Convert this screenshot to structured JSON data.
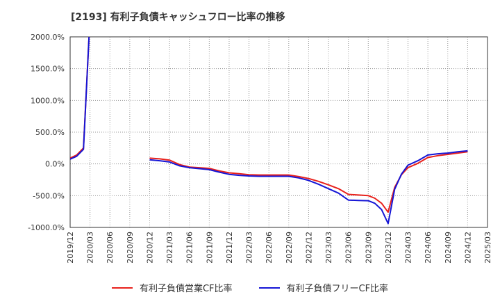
{
  "chart_data": {
    "type": "line",
    "title": "[2193]  有利子負債キャッシュフロー比率の推移",
    "xlabel": "",
    "ylabel": "",
    "ylim": [
      -1000,
      2000
    ],
    "xlim": [
      "2019/12",
      "2025/03"
    ],
    "grid": true,
    "legend_position": "bottom",
    "y_ticks": [
      2000,
      1500,
      1000,
      500,
      0,
      -500,
      -1000
    ],
    "y_tick_labels": [
      "2000.0%",
      "1500.0%",
      "1000.0%",
      "500.0%",
      "0.0%",
      "-500.0%",
      "-1000.0%"
    ],
    "x_tick_labels": [
      "2019/12",
      "2020/03",
      "2020/06",
      "2020/09",
      "2020/12",
      "2021/03",
      "2021/06",
      "2021/09",
      "2021/12",
      "2022/03",
      "2022/06",
      "2022/09",
      "2022/12",
      "2023/03",
      "2023/06",
      "2023/09",
      "2023/12",
      "2024/03",
      "2024/06",
      "2024/09",
      "2024/12",
      "2025/03"
    ],
    "series": [
      {
        "name": "有利子負債営業CF比率",
        "color": "#e8211c",
        "segments": [
          [
            [
              0,
              90
            ],
            [
              0.33,
              140
            ],
            [
              0.67,
              250
            ],
            [
              0.95,
              2000
            ]
          ],
          [
            [
              4,
              90
            ],
            [
              4.5,
              80
            ],
            [
              5,
              60
            ],
            [
              5.5,
              -10
            ],
            [
              6,
              -50
            ],
            [
              6.5,
              -60
            ],
            [
              7,
              -70
            ],
            [
              7.5,
              -110
            ],
            [
              8,
              -140
            ],
            [
              8.5,
              -155
            ],
            [
              9,
              -170
            ],
            [
              9.5,
              -175
            ],
            [
              10,
              -175
            ],
            [
              10.5,
              -175
            ],
            [
              11,
              -175
            ],
            [
              11.5,
              -200
            ],
            [
              12,
              -230
            ],
            [
              12.5,
              -275
            ],
            [
              13,
              -330
            ],
            [
              13.5,
              -390
            ],
            [
              14,
              -480
            ],
            [
              14.5,
              -490
            ],
            [
              15,
              -500
            ],
            [
              15.33,
              -540
            ],
            [
              15.67,
              -620
            ],
            [
              16,
              -760
            ],
            [
              16.33,
              -370
            ],
            [
              16.67,
              -170
            ],
            [
              17,
              -60
            ],
            [
              17.5,
              10
            ],
            [
              18,
              100
            ],
            [
              18.5,
              130
            ],
            [
              19,
              150
            ],
            [
              19.5,
              170
            ],
            [
              20,
              190
            ]
          ]
        ]
      },
      {
        "name": "有利子負債フリーCF比率",
        "color": "#1515d6",
        "segments": [
          [
            [
              0,
              75
            ],
            [
              0.33,
              120
            ],
            [
              0.67,
              230
            ],
            [
              0.95,
              2000
            ]
          ],
          [
            [
              4,
              65
            ],
            [
              4.5,
              50
            ],
            [
              5,
              30
            ],
            [
              5.5,
              -30
            ],
            [
              6,
              -60
            ],
            [
              6.5,
              -75
            ],
            [
              7,
              -90
            ],
            [
              7.5,
              -130
            ],
            [
              8,
              -165
            ],
            [
              8.5,
              -180
            ],
            [
              9,
              -190
            ],
            [
              9.5,
              -195
            ],
            [
              10,
              -195
            ],
            [
              10.5,
              -195
            ],
            [
              11,
              -195
            ],
            [
              11.5,
              -220
            ],
            [
              12,
              -260
            ],
            [
              12.5,
              -320
            ],
            [
              13,
              -390
            ],
            [
              13.5,
              -460
            ],
            [
              14,
              -570
            ],
            [
              14.5,
              -575
            ],
            [
              15,
              -580
            ],
            [
              15.33,
              -620
            ],
            [
              15.67,
              -720
            ],
            [
              16,
              -940
            ],
            [
              16.33,
              -400
            ],
            [
              16.67,
              -160
            ],
            [
              17,
              -20
            ],
            [
              17.5,
              50
            ],
            [
              18,
              140
            ],
            [
              18.5,
              160
            ],
            [
              19,
              170
            ],
            [
              19.5,
              190
            ],
            [
              20,
              205
            ]
          ]
        ]
      }
    ]
  }
}
